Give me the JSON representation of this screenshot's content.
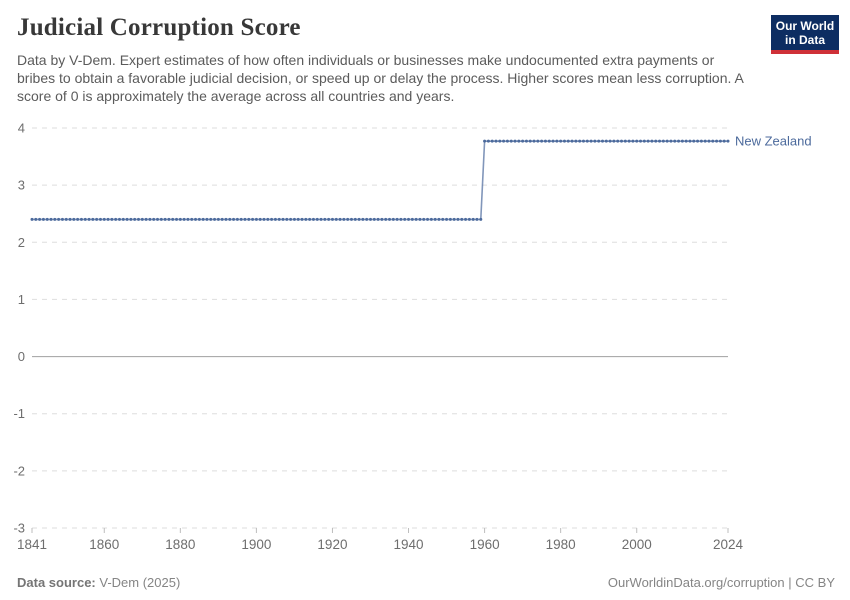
{
  "header": {
    "title": "Judicial Corruption Score",
    "subtitle": "Data by V-Dem. Expert estimates of how often individuals or businesses make undocumented extra payments or bribes to obtain a favorable judicial decision, or speed up or delay the process. Higher scores mean less corruption. A score of 0 is approximately the average across all countries and years.",
    "logo": {
      "line1": "Our World",
      "line2": "in Data"
    }
  },
  "chart_data": {
    "type": "line",
    "title": "Judicial Corruption Score",
    "xlabel": "",
    "ylabel": "",
    "x": {
      "min": 1841,
      "max": 2024,
      "ticks": [
        1841,
        1860,
        1880,
        1900,
        1920,
        1940,
        1960,
        1980,
        2000,
        2024
      ]
    },
    "y": {
      "min": -3,
      "max": 4,
      "ticks": [
        4,
        3,
        2,
        1,
        0,
        -1,
        -2,
        -3
      ],
      "zero_line": 0
    },
    "grid": true,
    "legend_position": "end-of-line",
    "series": [
      {
        "name": "New Zealand",
        "color": "#4c6a9c",
        "segments": [
          {
            "from_year": 1841,
            "to_year": 1959,
            "value": 2.4
          },
          {
            "from_year": 1960,
            "to_year": 2024,
            "value": 3.77
          }
        ]
      }
    ]
  },
  "footer": {
    "source_label": "Data source:",
    "source_value": "V-Dem (2025)",
    "url_text": "OurWorldinData.org/corruption",
    "separator": " | ",
    "license_text": "CC BY"
  },
  "colors": {
    "line": "#4c6a9c",
    "grid": "#dedede",
    "zero_line": "#a1a1a1",
    "axis_tick": "#bdbdbd",
    "axis_text": "#6e6e6e",
    "title_text": "#383838",
    "subtitle_text": "#5b5b5b",
    "footer_text": "#858585",
    "logo_bg": "#0d2d62",
    "logo_bar": "#cf3138"
  }
}
